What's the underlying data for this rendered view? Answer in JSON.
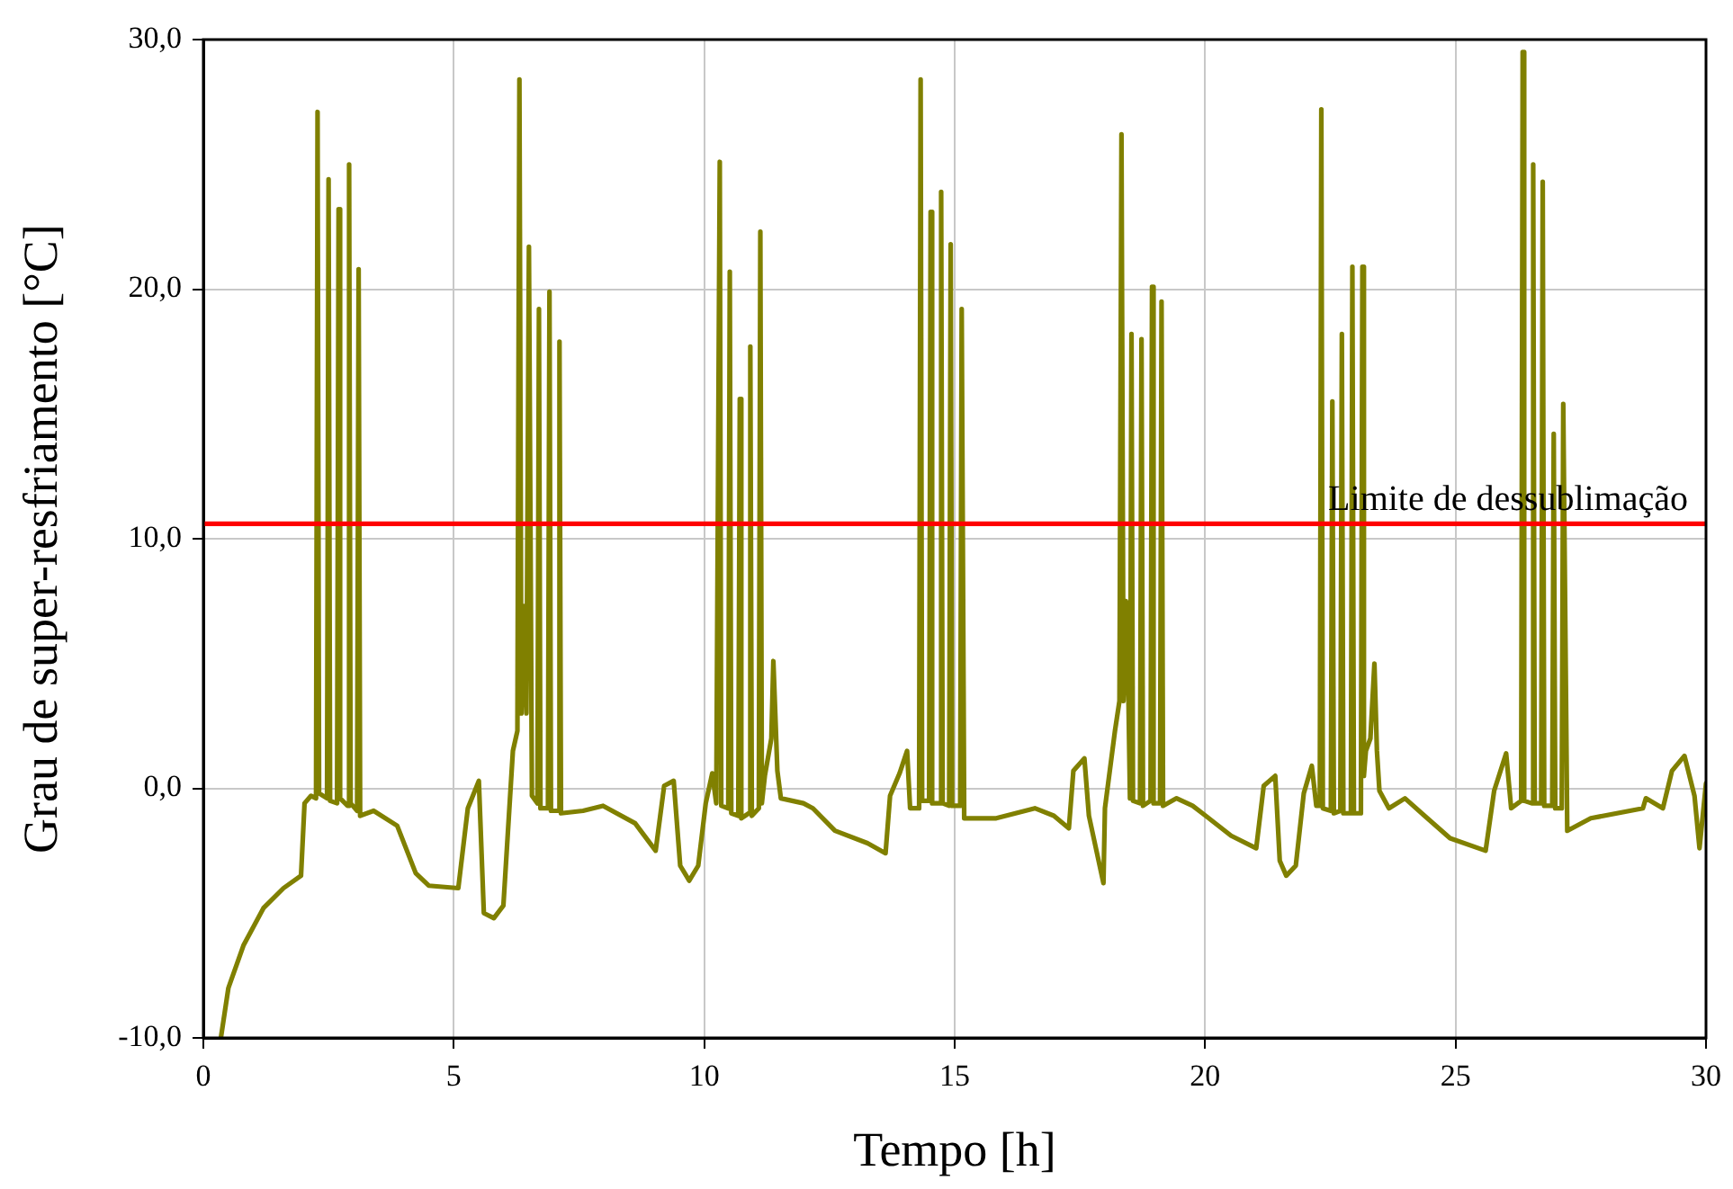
{
  "chart_data": {
    "type": "line",
    "xlabel": "Tempo [h]",
    "ylabel": "Grau de super-resfriamento [°C]",
    "xlim": [
      0,
      30
    ],
    "xticks": [
      0,
      5,
      10,
      15,
      20,
      25,
      30
    ],
    "ylim": [
      -10,
      30
    ],
    "yticks": [
      {
        "value": -10,
        "label": "-10,0"
      },
      {
        "value": 0,
        "label": "0,0"
      },
      {
        "value": 10,
        "label": "10,0"
      },
      {
        "value": 20,
        "label": "20,0"
      },
      {
        "value": 30,
        "label": "30,0"
      }
    ],
    "grid": true,
    "legend": false,
    "marker": "none",
    "line_style": "solid",
    "ref_lines": [
      {
        "axis": "y",
        "value": 10.6,
        "label": "Limite de dessublimação",
        "color": "#ff0000"
      }
    ],
    "series": [
      {
        "color": "#808000",
        "x": [
          0.35,
          0.5,
          0.8,
          1.2,
          1.6,
          1.95,
          2.02,
          2.15,
          2.25,
          2.28,
          2.31,
          2.47,
          2.5,
          2.53,
          2.67,
          2.7,
          2.73,
          2.88,
          2.91,
          2.94,
          3.07,
          3.1,
          3.13,
          3.4,
          3.87,
          4.24,
          4.5,
          5.09,
          5.28,
          5.5,
          5.6,
          5.8,
          5.99,
          6.18,
          6.27,
          6.31,
          6.35,
          6.4,
          6.45,
          6.5,
          6.56,
          6.67,
          6.7,
          6.73,
          6.88,
          6.91,
          6.94,
          7.08,
          7.11,
          7.14,
          7.58,
          7.98,
          8.62,
          9.03,
          9.2,
          9.39,
          9.52,
          9.7,
          9.88,
          10.03,
          10.16,
          10.24,
          10.31,
          10.34,
          10.48,
          10.51,
          10.54,
          10.68,
          10.71,
          10.74,
          10.89,
          10.92,
          10.95,
          11.09,
          11.12,
          11.15,
          11.21,
          11.34,
          11.38,
          11.46,
          11.53,
          11.98,
          12.17,
          12.61,
          13.26,
          13.62,
          13.71,
          13.9,
          14.05,
          14.11,
          14.29,
          14.32,
          14.35,
          14.49,
          14.52,
          14.55,
          14.7,
          14.73,
          14.76,
          14.89,
          14.92,
          14.95,
          15.11,
          15.14,
          15.19,
          15.83,
          16.6,
          16.98,
          17.28,
          17.37,
          17.59,
          17.68,
          17.97,
          18.0,
          18.2,
          18.29,
          18.33,
          18.37,
          18.42,
          18.47,
          18.5,
          18.53,
          18.56,
          18.7,
          18.73,
          18.76,
          18.91,
          18.94,
          18.97,
          19.1,
          19.13,
          19.16,
          19.43,
          19.75,
          20.01,
          20.52,
          21.02,
          21.17,
          21.4,
          21.49,
          21.62,
          21.81,
          21.97,
          22.13,
          22.22,
          22.29,
          22.32,
          22.35,
          22.51,
          22.54,
          22.57,
          22.7,
          22.73,
          22.76,
          22.91,
          22.94,
          22.97,
          23.11,
          23.14,
          23.17,
          23.21,
          23.3,
          23.38,
          23.43,
          23.48,
          23.67,
          23.99,
          24.38,
          24.89,
          25.6,
          25.77,
          26.01,
          26.11,
          26.31,
          26.34,
          26.37,
          26.52,
          26.55,
          26.58,
          26.71,
          26.74,
          26.77,
          26.93,
          26.96,
          26.99,
          27.12,
          27.15,
          27.23,
          27.7,
          28.74,
          28.8,
          29.14,
          29.32,
          29.57,
          29.77,
          29.87,
          30.0
        ],
        "values": [
          -10,
          -8,
          -6.3,
          -4.8,
          -4,
          -3.5,
          -0.6,
          -0.3,
          -0.4,
          27.1,
          -0.2,
          -0.4,
          24.4,
          -0.5,
          -0.6,
          23.2,
          -0.4,
          -0.7,
          25.0,
          -0.6,
          -0.9,
          20.8,
          -1.1,
          -0.9,
          -1.5,
          -3.4,
          -3.9,
          -4.0,
          -0.8,
          0.3,
          -5.0,
          -5.2,
          -4.7,
          1.5,
          2.3,
          28.4,
          3.0,
          7.3,
          3.0,
          21.7,
          -0.3,
          -0.6,
          19.2,
          -0.8,
          -0.8,
          19.9,
          -0.9,
          -0.9,
          17.9,
          -1.0,
          -0.9,
          -0.7,
          -1.4,
          -2.5,
          0.1,
          0.3,
          -3.1,
          -3.7,
          -3.1,
          -0.6,
          0.6,
          -0.6,
          25.1,
          -0.7,
          -0.8,
          20.7,
          -1.0,
          -1.1,
          15.6,
          -1.2,
          -1.0,
          17.7,
          -1.1,
          -0.8,
          22.3,
          -0.6,
          0.5,
          2.0,
          5.1,
          0.7,
          -0.4,
          -0.6,
          -0.8,
          -1.7,
          -2.2,
          -2.6,
          -0.3,
          0.6,
          1.5,
          -0.8,
          -0.8,
          28.4,
          -0.5,
          -0.5,
          23.1,
          -0.6,
          -0.6,
          23.9,
          -0.6,
          -0.7,
          21.8,
          -0.7,
          -0.7,
          19.2,
          -1.2,
          -1.2,
          -0.8,
          -1.1,
          -1.6,
          0.7,
          1.2,
          -1.1,
          -3.8,
          -0.8,
          2.3,
          3.5,
          26.2,
          3.5,
          7.5,
          3.5,
          -0.4,
          18.2,
          -0.5,
          -0.6,
          18.0,
          -0.7,
          -0.5,
          20.1,
          -0.6,
          -0.6,
          19.5,
          -0.7,
          -0.4,
          -0.7,
          -1.1,
          -1.9,
          -2.4,
          0.1,
          0.5,
          -2.9,
          -3.5,
          -3.1,
          -0.2,
          0.9,
          -0.7,
          -0.7,
          27.2,
          -0.8,
          -0.9,
          15.5,
          -1.0,
          -0.9,
          18.2,
          -1.0,
          -1.0,
          20.9,
          -1.0,
          -1.0,
          20.9,
          0.5,
          1.5,
          2.0,
          5.0,
          1.5,
          -0.1,
          -0.8,
          -0.4,
          -1.1,
          -2.0,
          -2.5,
          -0.1,
          1.4,
          -0.8,
          -0.5,
          29.5,
          -0.5,
          -0.6,
          25.0,
          -0.6,
          -0.6,
          24.3,
          -0.7,
          -0.7,
          14.2,
          -0.8,
          -0.8,
          15.4,
          -1.7,
          -1.2,
          -0.8,
          -0.4,
          -0.8,
          0.7,
          1.3,
          -0.3,
          -2.4,
          0.2
        ]
      }
    ]
  }
}
